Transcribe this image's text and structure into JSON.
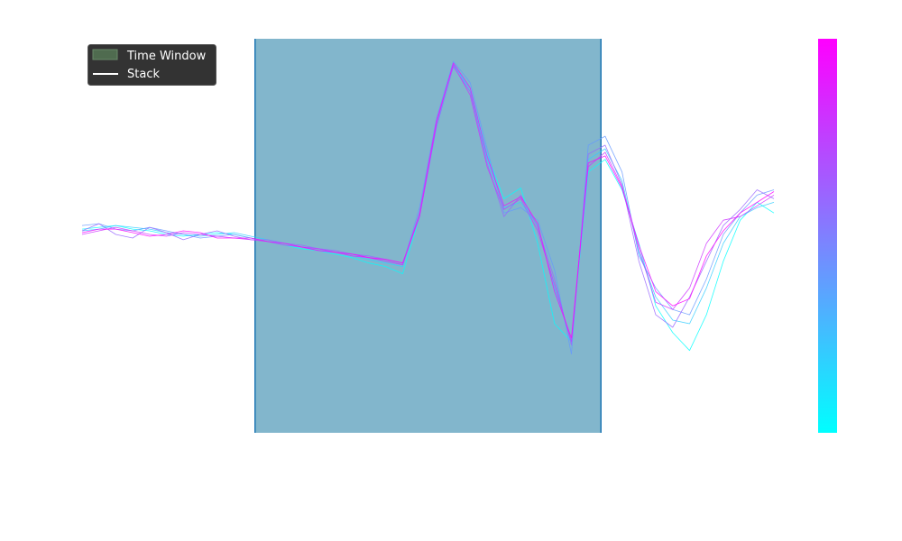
{
  "chart_data": {
    "type": "line",
    "title": "",
    "xlabel": "",
    "ylabel": "",
    "xlim": [
      0,
      100
    ],
    "ylim": [
      -1,
      1
    ],
    "grid": false,
    "legend": {
      "placement": "top-left",
      "entries": [
        {
          "label": "Time Window",
          "swatch": "patch",
          "color": "#4f6b4f"
        },
        {
          "label": "Stack",
          "swatch": "line",
          "color": "#ffffff"
        }
      ]
    },
    "time_window": {
      "start": 25.0,
      "end": 75.0,
      "color": "#82b6cc",
      "edge_color": "#1f77b4"
    },
    "colorbar": {
      "colormap": "cool",
      "colors": [
        "#00ffff",
        "#ff00ff"
      ]
    },
    "series": [
      {
        "color": "#00ffff",
        "values": [
          0.03,
          0.04,
          0.05,
          0.03,
          0.02,
          0.0,
          -0.01,
          0.0,
          0.01,
          0.0,
          -0.02,
          -0.04,
          -0.06,
          -0.08,
          -0.09,
          -0.11,
          -0.13,
          -0.16,
          -0.18,
          -0.22,
          0.1,
          0.6,
          0.95,
          0.82,
          0.45,
          0.2,
          0.26,
          -0.05,
          -0.5,
          -0.6,
          0.35,
          0.42,
          0.25,
          -0.05,
          -0.4,
          -0.55,
          -0.65,
          -0.45,
          -0.15,
          0.08,
          0.18,
          0.12
        ]
      },
      {
        "color": "#33ccff",
        "values": [
          0.02,
          0.03,
          0.05,
          0.04,
          0.03,
          0.01,
          0.0,
          -0.01,
          0.0,
          0.01,
          -0.01,
          -0.03,
          -0.05,
          -0.07,
          -0.08,
          -0.1,
          -0.12,
          -0.14,
          -0.16,
          -0.18,
          0.12,
          0.62,
          0.96,
          0.8,
          0.42,
          0.15,
          0.18,
          0.05,
          -0.3,
          -0.6,
          0.42,
          0.48,
          0.3,
          -0.1,
          -0.35,
          -0.48,
          -0.5,
          -0.3,
          -0.05,
          0.1,
          0.15,
          0.18
        ]
      },
      {
        "color": "#6699ff",
        "values": [
          0.05,
          0.06,
          0.03,
          0.02,
          0.04,
          0.02,
          0.0,
          -0.02,
          -0.01,
          0.0,
          -0.02,
          -0.04,
          -0.05,
          -0.07,
          -0.09,
          -0.1,
          -0.11,
          -0.13,
          -0.15,
          -0.17,
          0.15,
          0.65,
          0.97,
          0.85,
          0.48,
          0.12,
          0.15,
          0.08,
          -0.2,
          -0.67,
          0.5,
          0.55,
          0.35,
          -0.12,
          -0.3,
          -0.42,
          -0.45,
          -0.25,
          0.0,
          0.12,
          0.22,
          0.25
        ]
      },
      {
        "color": "#9966ff",
        "values": [
          0.02,
          0.06,
          0.0,
          -0.02,
          0.04,
          0.01,
          -0.03,
          0.0,
          0.02,
          -0.01,
          -0.03,
          -0.03,
          -0.05,
          -0.06,
          -0.08,
          -0.09,
          -0.11,
          -0.12,
          -0.14,
          -0.16,
          0.1,
          0.6,
          0.94,
          0.8,
          0.4,
          0.1,
          0.22,
          0.04,
          -0.25,
          -0.62,
          0.45,
          0.5,
          0.28,
          -0.15,
          -0.45,
          -0.52,
          -0.35,
          -0.15,
          0.05,
          0.14,
          0.25,
          0.2
        ]
      },
      {
        "color": "#cc33ff",
        "values": [
          0.0,
          0.02,
          0.04,
          0.02,
          0.0,
          -0.01,
          0.01,
          0.0,
          -0.01,
          -0.02,
          -0.03,
          -0.04,
          -0.06,
          -0.07,
          -0.08,
          -0.1,
          -0.12,
          -0.13,
          -0.15,
          -0.17,
          0.12,
          0.64,
          0.95,
          0.78,
          0.38,
          0.14,
          0.2,
          0.02,
          -0.28,
          -0.6,
          0.38,
          0.46,
          0.27,
          -0.08,
          -0.38,
          -0.42,
          -0.3,
          -0.05,
          0.08,
          0.1,
          0.16,
          0.22
        ]
      },
      {
        "color": "#ff00ff",
        "values": [
          0.01,
          0.03,
          0.03,
          0.01,
          -0.01,
          0.0,
          0.02,
          0.01,
          -0.02,
          -0.02,
          -0.02,
          -0.04,
          -0.05,
          -0.07,
          -0.09,
          -0.1,
          -0.11,
          -0.13,
          -0.14,
          -0.16,
          0.1,
          0.62,
          0.96,
          0.82,
          0.44,
          0.16,
          0.21,
          0.06,
          -0.32,
          -0.58,
          0.4,
          0.44,
          0.26,
          -0.06,
          -0.32,
          -0.4,
          -0.36,
          -0.12,
          0.02,
          0.12,
          0.18,
          0.24
        ]
      }
    ]
  }
}
